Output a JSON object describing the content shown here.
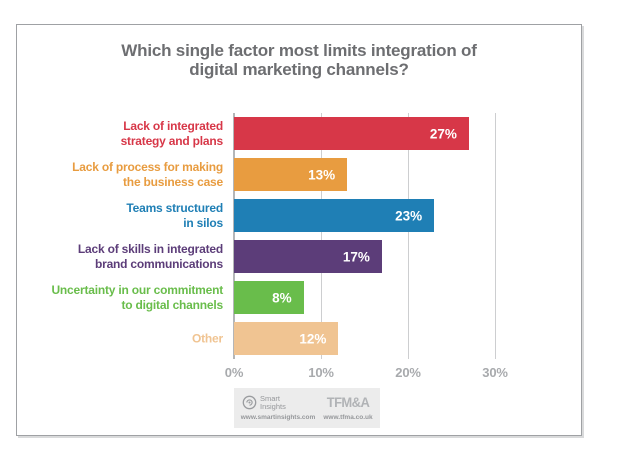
{
  "title": {
    "lines": [
      "Which single factor most limits integration of",
      "digital marketing channels?"
    ],
    "color": "#6d6e71"
  },
  "chart_data": {
    "type": "bar",
    "orientation": "horizontal",
    "title": "Which single factor most limits integration of digital marketing channels?",
    "categories": [
      "Lack of integrated strategy and plans",
      "Lack of process for making the business case",
      "Teams structured in silos",
      "Lack of skills in integrated brand communications",
      "Uncertainty in our commitment to digital channels",
      "Other"
    ],
    "category_label_lines": [
      [
        "Lack of integrated",
        "strategy and plans"
      ],
      [
        "Lack of process for making",
        "the business case"
      ],
      [
        "Teams structured",
        "in silos"
      ],
      [
        "Lack of skills in integrated",
        "brand communications"
      ],
      [
        "Uncertainty in our commitment",
        "to digital channels"
      ],
      [
        "Other"
      ]
    ],
    "values": [
      27,
      13,
      23,
      17,
      8,
      12
    ],
    "value_labels": [
      "27%",
      "13%",
      "23%",
      "17%",
      "8%",
      "12%"
    ],
    "bar_colors": [
      "#d73748",
      "#e89c40",
      "#1f7fb5",
      "#5c3d79",
      "#69bd4b",
      "#f0c492"
    ],
    "label_colors": [
      "#d73748",
      "#e89c40",
      "#1f7fb5",
      "#5c3d79",
      "#69bd4b",
      "#f0c492"
    ],
    "value_label_color": "#ffffff",
    "x_ticks": [
      {
        "label": "0%",
        "value": 0
      },
      {
        "label": "10%",
        "value": 10
      },
      {
        "label": "20%",
        "value": 20
      },
      {
        "label": "30%",
        "value": 30
      }
    ],
    "xlim": [
      0,
      33
    ],
    "grid": true,
    "gridline_color": "#cdced0",
    "zero_line_color": "#b4b6b8",
    "tick_label_color": "#a8aaad",
    "legend": "none"
  },
  "footer": {
    "smartinsights": {
      "icon": "smart-insights-logo-icon",
      "name_line1": "Smart",
      "name_line2": "Insights",
      "url": "www.smartinsights.com"
    },
    "tfma": {
      "name": "TFM&A",
      "url": "www.tfma.co.uk"
    },
    "text_color": "#95979a",
    "logo_color": "#b1b3b6"
  }
}
